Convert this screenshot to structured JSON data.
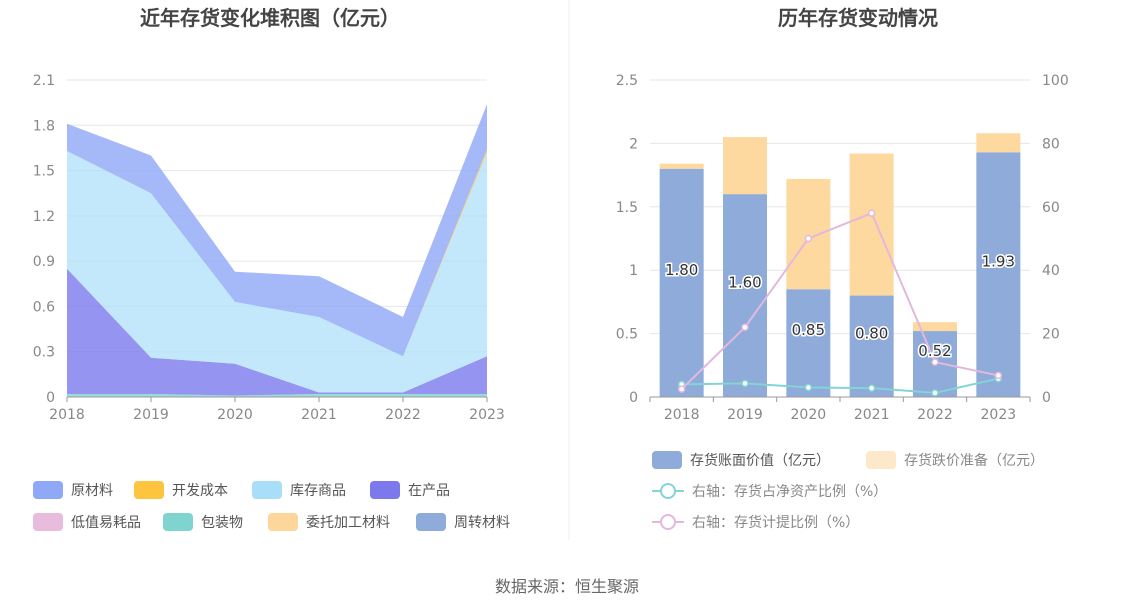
{
  "source": "数据来源：恒生聚源",
  "chart_data": [
    {
      "type": "area",
      "stacked": true,
      "title": "近年存货变化堆积图（亿元）",
      "categories": [
        "2018",
        "2019",
        "2020",
        "2021",
        "2022",
        "2023"
      ],
      "ylim": [
        0,
        2.1
      ],
      "yticks": [
        "0",
        "0.3",
        "0.6",
        "0.9",
        "1.2",
        "1.5",
        "1.8",
        "2.1"
      ],
      "legend_position": "bottom",
      "series": [
        {
          "name": "原材料",
          "color": "#8fa8f7",
          "values": [
            0.18,
            0.25,
            0.2,
            0.27,
            0.26,
            0.3
          ]
        },
        {
          "name": "开发成本",
          "color": "#fdc43e",
          "values": [
            0,
            0,
            0,
            0,
            0,
            0.02
          ]
        },
        {
          "name": "库存商品",
          "color": "#a9def9",
          "values": [
            0.78,
            1.09,
            0.41,
            0.5,
            0.24,
            1.35
          ]
        },
        {
          "name": "在产品",
          "color": "#7b79ec",
          "values": [
            0.83,
            0.24,
            0.21,
            0.01,
            0.01,
            0.25
          ]
        },
        {
          "name": "低值易耗品",
          "color": "#e8bcdc",
          "values": [
            0,
            0,
            0,
            0,
            0,
            0
          ]
        },
        {
          "name": "包装物",
          "color": "#80d4d0",
          "values": [
            0.02,
            0.02,
            0.01,
            0.02,
            0.02,
            0.02
          ]
        },
        {
          "name": "委托加工材料",
          "color": "#fdd69b",
          "values": [
            0,
            0,
            0,
            0,
            0,
            0
          ]
        },
        {
          "name": "周转材料",
          "color": "#8eabda",
          "values": [
            0,
            0,
            0,
            0,
            0,
            0
          ]
        }
      ]
    },
    {
      "type": "bar",
      "stacked": true,
      "title": "历年存货变动情况",
      "categories": [
        "2018",
        "2019",
        "2020",
        "2021",
        "2022",
        "2023"
      ],
      "ylim": [
        0,
        2.5
      ],
      "yticks": [
        "0",
        "0.5",
        "1",
        "1.5",
        "2",
        "2.5"
      ],
      "y2lim": [
        0,
        100
      ],
      "y2ticks": [
        "0",
        "20",
        "40",
        "60",
        "80",
        "100"
      ],
      "legend_position": "bottom",
      "series": [
        {
          "name": "存货账面价值（亿元）",
          "color": "#8eabda",
          "values": [
            1.8,
            1.6,
            0.85,
            0.8,
            0.52,
            1.93
          ],
          "labels": [
            "1.80",
            "1.60",
            "0.85",
            "0.80",
            "0.52",
            "1.93"
          ]
        },
        {
          "name": "存货跌价准备（亿元）",
          "color": "#fdd99f",
          "legend_color": "#fde9c9",
          "values": [
            0.04,
            0.45,
            0.87,
            1.12,
            0.07,
            0.15
          ]
        }
      ],
      "line_series": [
        {
          "name": "右轴：存货占净资产比例（%）",
          "color": "#84d3d5",
          "axis": "right",
          "values": [
            4,
            4.3,
            3,
            2.8,
            1.3,
            5.8
          ]
        },
        {
          "name": "右轴：存货计提比例（%）",
          "color": "#e3b8dc",
          "axis": "right",
          "values": [
            2.5,
            22,
            50,
            58,
            11,
            6.8
          ]
        }
      ]
    }
  ]
}
